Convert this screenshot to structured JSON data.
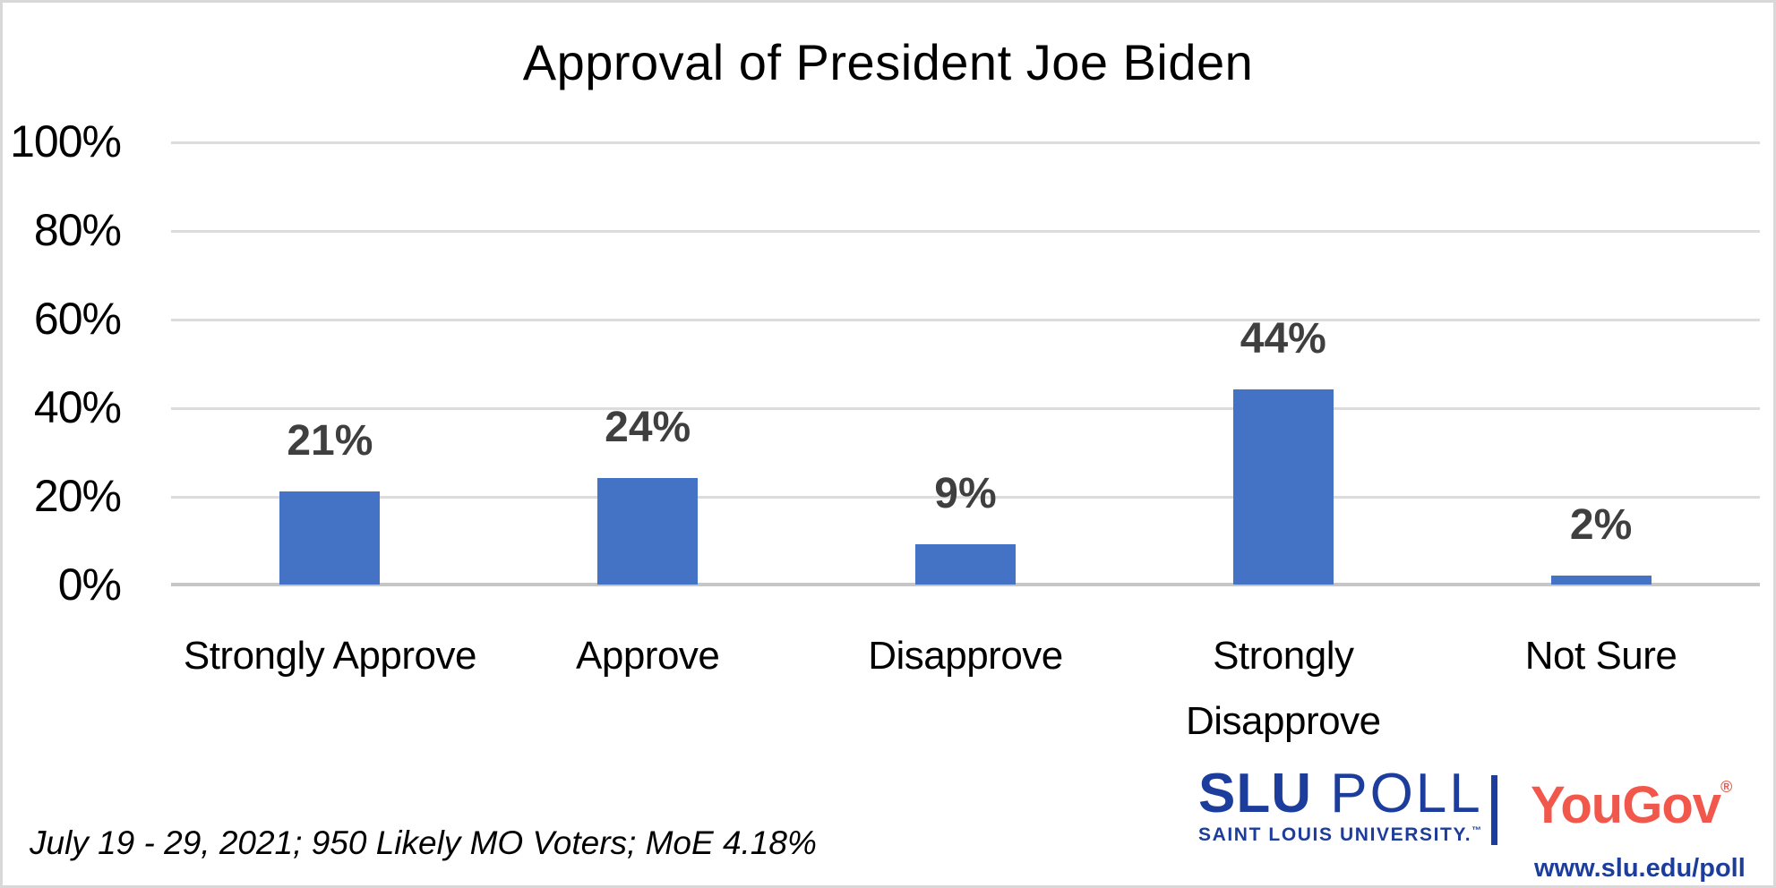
{
  "chart_data": {
    "type": "bar",
    "title": "Approval of President Joe Biden",
    "categories": [
      "Strongly Approve",
      "Approve",
      "Disapprove",
      "Strongly Disapprove",
      "Not Sure"
    ],
    "values": [
      21,
      24,
      9,
      44,
      2
    ],
    "value_labels": [
      "21%",
      "24%",
      "9%",
      "44%",
      "2%"
    ],
    "y_ticks": [
      "100%",
      "80%",
      "60%",
      "40%",
      "20%",
      "0%"
    ],
    "ylim": [
      0,
      100
    ],
    "grid": true,
    "legend": "none",
    "bar_color": "#4472c4",
    "value_label_color": "#3f3f3f",
    "gridline_color": "#dcdcdc"
  },
  "footnote": "July 19 - 29, 2021; 950 Likely MO Voters; MoE 4.18%",
  "branding": {
    "slu_bold": "SLU",
    "slu_rest": " POLL",
    "slu_subtitle": "SAINT LOUIS UNIVERSITY.",
    "slu_trademark": "™",
    "yougov": "YouGov",
    "yougov_registered": "®",
    "url": "www.slu.edu/poll",
    "slu_blue": "#1d3d9c",
    "yougov_red": "#f2574b"
  }
}
